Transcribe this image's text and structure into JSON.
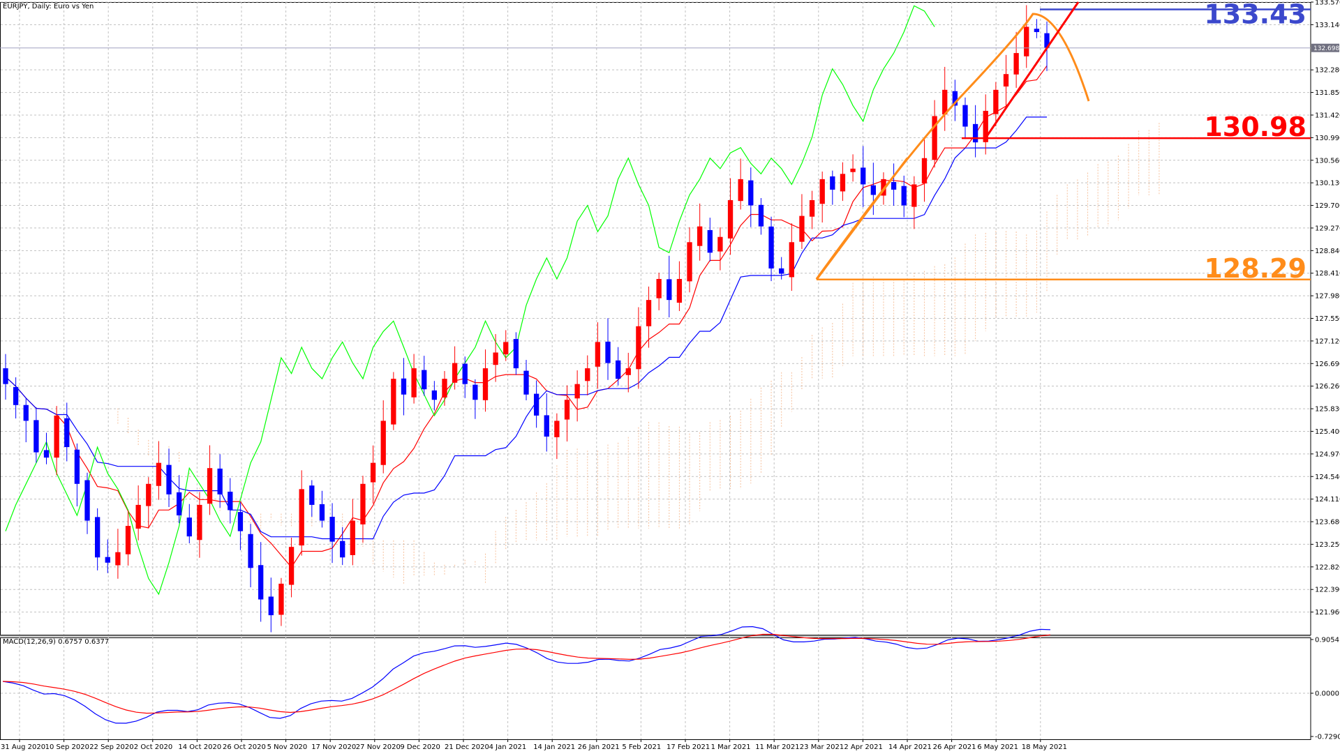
{
  "window": {
    "title": "EURJPY, Daily:  Euro vs Yen",
    "indicator_label": "MACD(12,26,9) 0.6757 0.6377",
    "current_price": "132.698"
  },
  "colors": {
    "bull": "#ff0000",
    "bear": "#0000ff",
    "kijun": "#0000ff",
    "tenkan": "#ff0000",
    "chikou": "#00ff00",
    "cloud": "#f4b183",
    "grid": "#c0c0c0",
    "orange": "#ff8c1a",
    "red_line": "#ff0000",
    "blue_line": "#3b48cc",
    "macd": "#0000ff",
    "signal": "#ff0000"
  },
  "chart_data": [
    {
      "type": "candlestick",
      "title": "EURJPY, Daily:  Euro vs Yen",
      "price_ticks": [
        "133.570",
        "133.140",
        "132.280",
        "131.850",
        "131.420",
        "130.990",
        "130.560",
        "130.130",
        "129.700",
        "129.270",
        "128.840",
        "128.410",
        "127.980",
        "127.550",
        "127.120",
        "126.690",
        "126.260",
        "125.830",
        "125.400",
        "124.970",
        "124.540",
        "124.110",
        "123.680",
        "123.250",
        "122.820",
        "122.390",
        "121.960"
      ],
      "date_ticks": [
        "31 Aug 2020",
        "10 Sep 2020",
        "22 Sep 2020",
        "2 Oct 2020",
        "14 Oct 2020",
        "26 Oct 2020",
        "5 Nov 2020",
        "17 Nov 2020",
        "27 Nov 2020",
        "9 Dec 2020",
        "21 Dec 2020",
        "4 Jan 2021",
        "14 Jan 2021",
        "26 Jan 2021",
        "5 Feb 2021",
        "17 Feb 2021",
        "1 Mar 2021",
        "11 Mar 2021",
        "23 Mar 2021",
        "2 Apr 2021",
        "14 Apr 2021",
        "26 Apr 2021",
        "6 May 2021",
        "18 May 2021"
      ],
      "ylim": [
        121.6,
        133.6
      ],
      "grid": true,
      "key_closes": [
        126.3,
        125.9,
        125.6,
        125.0,
        124.9,
        125.7,
        125.1,
        124.4,
        123.7,
        123.0,
        122.9,
        123.1,
        123.6,
        124.0,
        124.4,
        124.8,
        124.2,
        123.8,
        123.4,
        124.0,
        124.7,
        124.2,
        123.9,
        123.5,
        122.8,
        122.2,
        121.9,
        122.5,
        123.2,
        124.3,
        124.0,
        123.7,
        123.3,
        123.0,
        123.7,
        124.4,
        124.8,
        125.6,
        126.4,
        126.1,
        126.6,
        126.2,
        126.0,
        126.4,
        126.7,
        126.3,
        126.0,
        126.6,
        126.9,
        127.1,
        126.6,
        126.1,
        125.7,
        125.3,
        125.6,
        126.0,
        126.3,
        126.6,
        127.1,
        126.7,
        126.4,
        126.6,
        127.4,
        127.9,
        128.3,
        127.9,
        128.3,
        129.0,
        129.3,
        128.8,
        129.1,
        129.8,
        130.2,
        129.7,
        129.3,
        128.5,
        128.4,
        129.0,
        129.5,
        129.8,
        130.2,
        130.0,
        130.3,
        130.4,
        130.1,
        129.9,
        130.2,
        130.0,
        129.7,
        130.1,
        130.6,
        131.4,
        131.9,
        131.6,
        131.2,
        130.9,
        131.5,
        131.9,
        132.2,
        132.6,
        133.1,
        133.0,
        132.7
      ],
      "series": [],
      "levels": [
        {
          "value": "133.43",
          "price": 133.43
        },
        {
          "value": "130.98",
          "price": 130.98
        },
        {
          "value": "128.29",
          "price": 128.29
        }
      ],
      "current_price": 132.698
    },
    {
      "type": "line",
      "title": "MACD(12,26,9) 0.6757 0.6377",
      "y_ticks": [
        "0.9054",
        "0.0000",
        "-0.7290"
      ],
      "ylim": [
        -0.729,
        0.9054
      ],
      "series": []
    }
  ]
}
